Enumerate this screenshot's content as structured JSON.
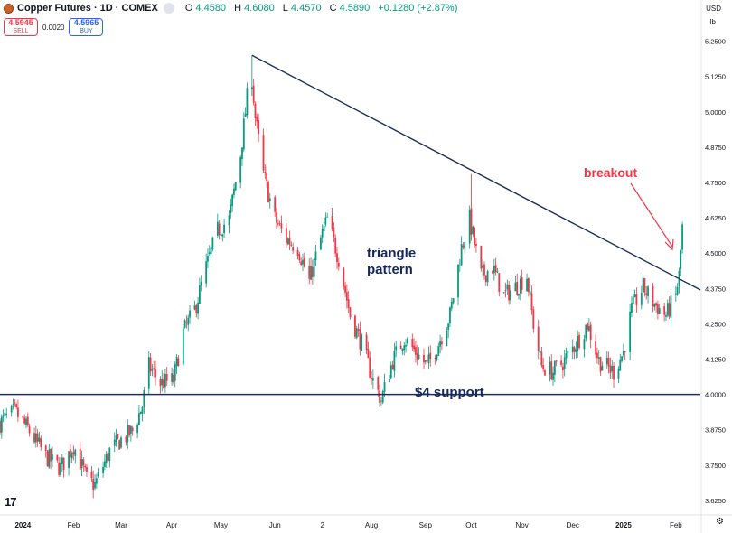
{
  "header": {
    "symbol": "Copper Futures · 1D · COMEX",
    "ohlc": [
      {
        "k": "O",
        "v": "4.4580"
      },
      {
        "k": "H",
        "v": "4.6080"
      },
      {
        "k": "L",
        "v": "4.4570"
      },
      {
        "k": "C",
        "v": "4.5890"
      },
      {
        "k": "",
        "v": "+0.1280 (+2.87%)"
      }
    ],
    "sell_price": "4.5945",
    "sell_label": "SELL",
    "spread": "0.0020",
    "buy_price": "4.5965",
    "buy_label": "BUY",
    "currency": "USD",
    "unit": "lb"
  },
  "colors": {
    "up": "#089981",
    "down": "#f23645",
    "trendline": "#1e2f5a",
    "annotation_text": "#14285e",
    "breakout": "#f23645"
  },
  "icons": [
    "copper-logo-icon",
    "tradingview-logo-icon",
    "settings-icon"
  ],
  "chart_data": {
    "type": "candlestick",
    "y_range": [
      3.58,
      5.3
    ],
    "y_ticks": [
      "5.2500",
      "5.1250",
      "5.0000",
      "4.8750",
      "4.7500",
      "4.6250",
      "4.5000",
      "4.3750",
      "4.2500",
      "4.1250",
      "4.0000",
      "3.8750",
      "3.7500",
      "3.6250"
    ],
    "y_tick_values": [
      5.25,
      5.125,
      5.0,
      4.875,
      4.75,
      4.625,
      4.5,
      4.375,
      4.25,
      4.125,
      4.0,
      3.875,
      3.75,
      3.625
    ],
    "x_range": [
      "2023-12-18",
      "2025-02-18"
    ],
    "x_ticks": [
      {
        "label": "2024",
        "date": "2024-01-01",
        "bold": true
      },
      {
        "label": "Feb",
        "date": "2024-02-01",
        "bold": false
      },
      {
        "label": "Mar",
        "date": "2024-03-01",
        "bold": false
      },
      {
        "label": "Apr",
        "date": "2024-04-01",
        "bold": false
      },
      {
        "label": "May",
        "date": "2024-05-01",
        "bold": false
      },
      {
        "label": "Jun",
        "date": "2024-06-03",
        "bold": false
      },
      {
        "label": "2",
        "date": "2024-07-02",
        "bold": false
      },
      {
        "label": "Aug",
        "date": "2024-08-01",
        "bold": false
      },
      {
        "label": "Sep",
        "date": "2024-09-03",
        "bold": false
      },
      {
        "label": "Oct",
        "date": "2024-10-01",
        "bold": false
      },
      {
        "label": "Nov",
        "date": "2024-11-01",
        "bold": false
      },
      {
        "label": "Dec",
        "date": "2024-12-02",
        "bold": false
      },
      {
        "label": "2025",
        "date": "2025-01-02",
        "bold": true
      },
      {
        "label": "Feb",
        "date": "2025-02-03",
        "bold": false
      }
    ],
    "price_path": [
      [
        "2023-12-18",
        3.9
      ],
      [
        "2023-12-27",
        3.94
      ],
      [
        "2024-01-05",
        3.87
      ],
      [
        "2024-01-15",
        3.78
      ],
      [
        "2024-01-24",
        3.74
      ],
      [
        "2024-02-01",
        3.82
      ],
      [
        "2024-02-09",
        3.7
      ],
      [
        "2024-02-14",
        3.68
      ],
      [
        "2024-02-23",
        3.8
      ],
      [
        "2024-03-01",
        3.84
      ],
      [
        "2024-03-08",
        3.87
      ],
      [
        "2024-03-14",
        3.96
      ],
      [
        "2024-03-18",
        4.1
      ],
      [
        "2024-03-25",
        4.04
      ],
      [
        "2024-04-02",
        4.05
      ],
      [
        "2024-04-08",
        4.22
      ],
      [
        "2024-04-15",
        4.3
      ],
      [
        "2024-04-22",
        4.45
      ],
      [
        "2024-04-29",
        4.58
      ],
      [
        "2024-05-06",
        4.62
      ],
      [
        "2024-05-13",
        4.85
      ],
      [
        "2024-05-17",
        5.05
      ],
      [
        "2024-05-20",
        5.12
      ],
      [
        "2024-05-22",
        4.98
      ],
      [
        "2024-05-27",
        4.78
      ],
      [
        "2024-06-03",
        4.62
      ],
      [
        "2024-06-10",
        4.55
      ],
      [
        "2024-06-17",
        4.52
      ],
      [
        "2024-06-24",
        4.4
      ],
      [
        "2024-07-01",
        4.55
      ],
      [
        "2024-07-05",
        4.62
      ],
      [
        "2024-07-12",
        4.48
      ],
      [
        "2024-07-19",
        4.28
      ],
      [
        "2024-07-26",
        4.18
      ],
      [
        "2024-08-02",
        4.05
      ],
      [
        "2024-08-07",
        3.98
      ],
      [
        "2024-08-14",
        4.12
      ],
      [
        "2024-08-21",
        4.2
      ],
      [
        "2024-08-28",
        4.15
      ],
      [
        "2024-09-04",
        4.1
      ],
      [
        "2024-09-11",
        4.18
      ],
      [
        "2024-09-18",
        4.28
      ],
      [
        "2024-09-25",
        4.52
      ],
      [
        "2024-09-30",
        4.62
      ],
      [
        "2024-10-07",
        4.42
      ],
      [
        "2024-10-14",
        4.45
      ],
      [
        "2024-10-21",
        4.35
      ],
      [
        "2024-10-28",
        4.38
      ],
      [
        "2024-11-04",
        4.42
      ],
      [
        "2024-11-08",
        4.25
      ],
      [
        "2024-11-13",
        4.1
      ],
      [
        "2024-11-20",
        4.08
      ],
      [
        "2024-11-27",
        4.12
      ],
      [
        "2024-12-04",
        4.18
      ],
      [
        "2024-12-11",
        4.25
      ],
      [
        "2024-12-18",
        4.12
      ],
      [
        "2024-12-27",
        4.08
      ],
      [
        "2025-01-02",
        4.15
      ],
      [
        "2025-01-07",
        4.3
      ],
      [
        "2025-01-14",
        4.38
      ],
      [
        "2025-01-21",
        4.32
      ],
      [
        "2025-01-28",
        4.28
      ],
      [
        "2025-02-03",
        4.35
      ],
      [
        "2025-02-05",
        4.42
      ],
      [
        "2025-02-07",
        4.59
      ]
    ],
    "peak_wicks": [
      {
        "date": "2024-05-20",
        "high": 5.2
      },
      {
        "date": "2024-10-01",
        "high": 4.78
      }
    ],
    "trendline": {
      "start": [
        "2024-05-20",
        5.2
      ],
      "end": [
        "2025-02-18",
        4.37
      ]
    },
    "support": {
      "value": 4.0
    }
  },
  "annotations": {
    "triangle_line1": "triangle",
    "triangle_line2": "pattern",
    "support": "$4 support",
    "breakout": "breakout"
  }
}
